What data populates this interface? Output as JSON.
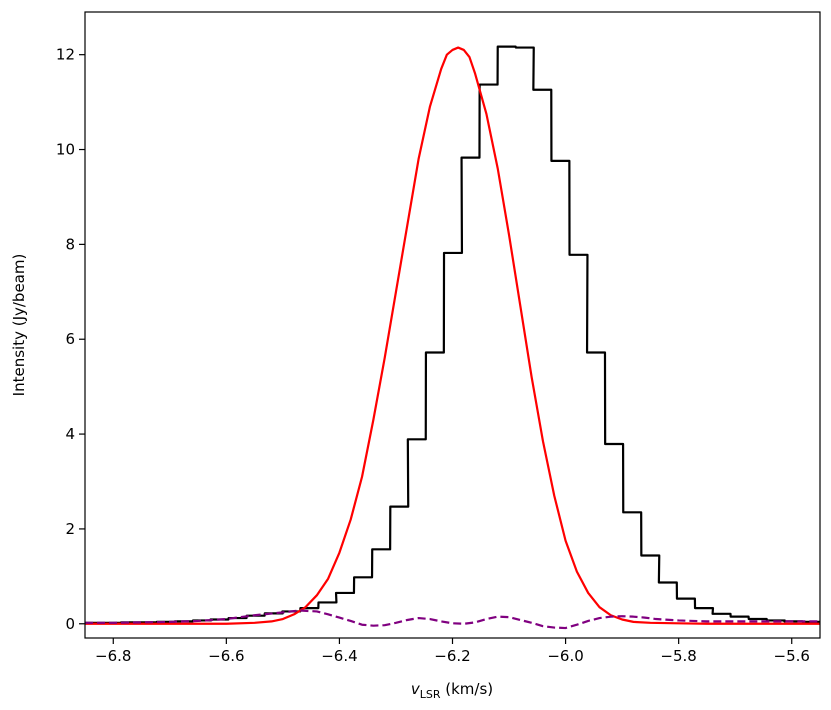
{
  "chart_data": {
    "type": "line",
    "xlabel": {
      "main": "v",
      "sub": "LSR",
      "rest": " (km/s)"
    },
    "ylabel": "Intensity (Jy/beam)",
    "xlim": [
      -6.85,
      -5.55
    ],
    "ylim": [
      -0.3,
      12.9
    ],
    "xticks": [
      -6.8,
      -6.6,
      -6.4,
      -6.2,
      -6.0,
      -5.8,
      -5.6
    ],
    "xtick_labels": [
      "−6.8",
      "−6.6",
      "−6.4",
      "−6.2",
      "−6.0",
      "−5.8",
      "−5.6"
    ],
    "yticks": [
      0,
      2,
      4,
      6,
      8,
      10,
      12
    ],
    "ytick_labels": [
      "0",
      "2",
      "4",
      "6",
      "8",
      "10",
      "12"
    ],
    "grid": false,
    "series": [
      {
        "kind": "step",
        "color": "#000000",
        "style": "solid",
        "bin_width": 0.0317,
        "x": [
          -6.85,
          -6.818,
          -6.786,
          -6.754,
          -6.723,
          -6.691,
          -6.659,
          -6.628,
          -6.596,
          -6.564,
          -6.532,
          -6.501,
          -6.469,
          -6.437,
          -6.406,
          -6.374,
          -6.342,
          -6.31,
          -6.279,
          -6.247,
          -6.215,
          -6.184,
          -6.152,
          -6.12,
          -6.088,
          -6.057,
          -6.025,
          -5.993,
          -5.962,
          -5.93,
          -5.898,
          -5.866,
          -5.835,
          -5.803,
          -5.771,
          -5.74,
          -5.708,
          -5.676,
          -5.644,
          -5.613,
          -5.581
        ],
        "y": [
          0.02,
          0.02,
          0.03,
          0.03,
          0.04,
          0.05,
          0.07,
          0.09,
          0.12,
          0.17,
          0.22,
          0.26,
          0.33,
          0.45,
          0.65,
          0.98,
          1.57,
          2.47,
          3.89,
          5.72,
          7.82,
          9.83,
          11.37,
          12.17,
          12.15,
          11.26,
          9.76,
          7.78,
          5.72,
          3.79,
          2.35,
          1.44,
          0.87,
          0.53,
          0.33,
          0.21,
          0.15,
          0.1,
          0.07,
          0.05,
          0.04
        ]
      },
      {
        "kind": "line",
        "color": "#ff0000",
        "style": "solid",
        "x": [
          -6.85,
          -6.8,
          -6.75,
          -6.7,
          -6.65,
          -6.6,
          -6.55,
          -6.52,
          -6.5,
          -6.48,
          -6.46,
          -6.44,
          -6.42,
          -6.4,
          -6.38,
          -6.36,
          -6.34,
          -6.32,
          -6.3,
          -6.28,
          -6.26,
          -6.24,
          -6.22,
          -6.21,
          -6.2,
          -6.19,
          -6.18,
          -6.17,
          -6.16,
          -6.14,
          -6.12,
          -6.1,
          -6.08,
          -6.06,
          -6.04,
          -6.02,
          -6.0,
          -5.98,
          -5.96,
          -5.94,
          -5.92,
          -5.9,
          -5.88,
          -5.85,
          -5.8,
          -5.75,
          -5.7,
          -5.6,
          -5.55
        ],
        "y": [
          0,
          0,
          0,
          0,
          0,
          0,
          0.02,
          0.05,
          0.1,
          0.2,
          0.35,
          0.6,
          0.95,
          1.5,
          2.2,
          3.1,
          4.3,
          5.6,
          7.0,
          8.4,
          9.8,
          10.9,
          11.7,
          12.0,
          12.1,
          12.15,
          12.1,
          11.95,
          11.6,
          10.75,
          9.6,
          8.2,
          6.7,
          5.2,
          3.85,
          2.7,
          1.75,
          1.1,
          0.65,
          0.35,
          0.18,
          0.09,
          0.04,
          0.02,
          0.01,
          0,
          0,
          0,
          0
        ]
      },
      {
        "kind": "line",
        "color": "#800080",
        "style": "dashed",
        "x": [
          -6.85,
          -6.8,
          -6.75,
          -6.7,
          -6.65,
          -6.6,
          -6.55,
          -6.5,
          -6.47,
          -6.44,
          -6.42,
          -6.4,
          -6.38,
          -6.36,
          -6.34,
          -6.32,
          -6.3,
          -6.28,
          -6.26,
          -6.24,
          -6.22,
          -6.2,
          -6.18,
          -6.16,
          -6.14,
          -6.12,
          -6.1,
          -6.08,
          -6.06,
          -6.04,
          -6.02,
          -6.0,
          -5.98,
          -5.96,
          -5.94,
          -5.92,
          -5.9,
          -5.88,
          -5.86,
          -5.84,
          -5.8,
          -5.75,
          -5.7,
          -5.65,
          -5.6,
          -5.55
        ],
        "y": [
          0.02,
          0.02,
          0.03,
          0.04,
          0.06,
          0.1,
          0.18,
          0.24,
          0.28,
          0.26,
          0.2,
          0.13,
          0.06,
          -0.02,
          -0.04,
          -0.03,
          0.02,
          0.08,
          0.12,
          0.1,
          0.05,
          0.01,
          0.0,
          0.03,
          0.1,
          0.15,
          0.14,
          0.08,
          0.02,
          -0.05,
          -0.08,
          -0.09,
          -0.02,
          0.06,
          0.12,
          0.15,
          0.16,
          0.15,
          0.13,
          0.1,
          0.07,
          0.05,
          0.05,
          0.05,
          0.05,
          0.05
        ]
      }
    ]
  }
}
